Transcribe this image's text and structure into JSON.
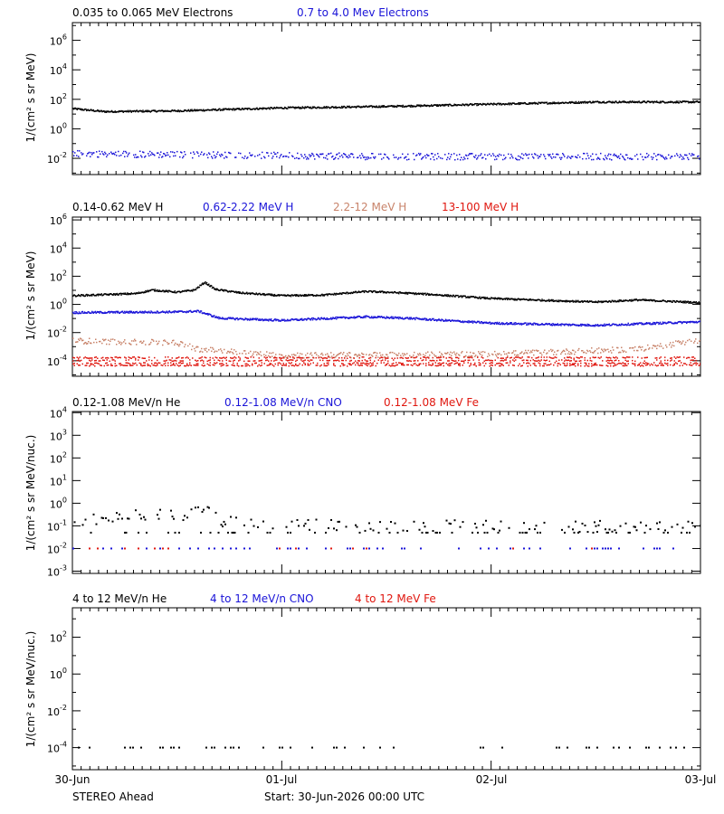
{
  "colors": {
    "black": "#000000",
    "blue": "#1a14d8",
    "salmon": "#c8836a",
    "red": "#e0170f",
    "white": "#ffffff"
  },
  "x_axis": {
    "ticks": [
      {
        "label": "30-Jun",
        "value": 0
      },
      {
        "label": "01-Jul",
        "value": 1
      },
      {
        "label": "02-Jul",
        "value": 2
      },
      {
        "label": "03-Jul",
        "value": 3
      }
    ],
    "minor_per_day": 24,
    "range_days": [
      0,
      3
    ]
  },
  "footer": {
    "spacecraft": "STEREO Ahead",
    "start": "Start: 30-Jun-2026 00:00 UTC"
  },
  "chart_data": [
    {
      "id": "electrons",
      "type": "scatter",
      "ylabel": "1/(cm² s sr MeV)",
      "yscale": "log",
      "ylim_exp": [
        -3.1,
        7.2
      ],
      "yticks_exp": [
        -2,
        0,
        2,
        4,
        6
      ],
      "legend": [
        {
          "text": "0.035 to 0.065 MeV Electrons",
          "color": "black"
        },
        {
          "text": "0.7 to 4.0 Mev Electrons",
          "color": "blue"
        }
      ],
      "series": [
        {
          "name": "0.035 to 0.065 MeV Electrons",
          "color": "black",
          "style": "dense",
          "curve": [
            [
              0,
              1.35
            ],
            [
              0.15,
              1.15
            ],
            [
              0.5,
              1.2
            ],
            [
              1.0,
              1.4
            ],
            [
              1.5,
              1.5
            ],
            [
              2.0,
              1.65
            ],
            [
              2.5,
              1.8
            ],
            [
              3.0,
              1.8
            ]
          ],
          "scatter": 0.06
        },
        {
          "name": "0.7 to 4.0 Mev Electrons",
          "color": "blue",
          "style": "noisy",
          "curve": [
            [
              0,
              -1.7
            ],
            [
              1.5,
              -1.9
            ],
            [
              3.0,
              -1.9
            ]
          ],
          "scatter": 0.22
        }
      ]
    },
    {
      "id": "protons",
      "type": "scatter",
      "ylabel": "1/(cm² s sr MeV)",
      "yscale": "log",
      "ylim_exp": [
        -5.1,
        6.2
      ],
      "yticks_exp": [
        -4,
        -2,
        0,
        2,
        4,
        6
      ],
      "legend": [
        {
          "text": "0.14-0.62 MeV H",
          "color": "black"
        },
        {
          "text": "0.62-2.22 MeV H",
          "color": "blue"
        },
        {
          "text": "2.2-12 MeV H",
          "color": "salmon"
        },
        {
          "text": "13-100 MeV H",
          "color": "red"
        }
      ],
      "series": [
        {
          "name": "0.14-0.62 MeV H",
          "color": "black",
          "style": "dense",
          "curve": [
            [
              0,
              0.6
            ],
            [
              0.3,
              0.75
            ],
            [
              0.38,
              1.0
            ],
            [
              0.5,
              0.85
            ],
            [
              0.58,
              1.0
            ],
            [
              0.63,
              1.55
            ],
            [
              0.68,
              1.05
            ],
            [
              0.8,
              0.8
            ],
            [
              1.0,
              0.6
            ],
            [
              1.2,
              0.65
            ],
            [
              1.4,
              0.9
            ],
            [
              1.5,
              0.85
            ],
            [
              1.7,
              0.7
            ],
            [
              2.0,
              0.4
            ],
            [
              2.5,
              0.15
            ],
            [
              2.7,
              0.3
            ],
            [
              3.0,
              0.1
            ]
          ],
          "scatter": 0.06
        },
        {
          "name": "0.62-2.22 MeV H",
          "color": "blue",
          "style": "dense",
          "curve": [
            [
              0,
              -0.6
            ],
            [
              0.5,
              -0.55
            ],
            [
              0.6,
              -0.5
            ],
            [
              0.7,
              -1.0
            ],
            [
              1.0,
              -1.15
            ],
            [
              1.4,
              -0.9
            ],
            [
              1.6,
              -1.0
            ],
            [
              2.0,
              -1.35
            ],
            [
              2.5,
              -1.5
            ],
            [
              2.8,
              -1.35
            ],
            [
              3.0,
              -1.25
            ]
          ],
          "scatter": 0.07
        },
        {
          "name": "2.2-12 MeV H",
          "color": "salmon",
          "style": "noisy",
          "curve": [
            [
              0,
              -2.6
            ],
            [
              0.5,
              -2.75
            ],
            [
              0.6,
              -3.2
            ],
            [
              1.0,
              -3.65
            ],
            [
              2.0,
              -3.55
            ],
            [
              2.4,
              -3.35
            ],
            [
              2.7,
              -3.2
            ],
            [
              3.0,
              -2.55
            ]
          ],
          "scatter": 0.2
        },
        {
          "name": "13-100 MeV H",
          "color": "red",
          "style": "bands",
          "bands": [
            -3.8,
            -4.0,
            -4.2,
            -4.35
          ],
          "scatter": 0.05
        }
      ]
    },
    {
      "id": "ions_low",
      "type": "scatter",
      "ylabel": "1/(cm² s sr MeV/nuc.)",
      "yscale": "log",
      "ylim_exp": [
        -3.1,
        4.05
      ],
      "yticks_exp": [
        -3,
        -2,
        -1,
        0,
        1,
        2,
        3,
        4
      ],
      "legend": [
        {
          "text": "0.12-1.08 MeV/n He",
          "color": "black"
        },
        {
          "text": "0.12-1.08 MeV/n CNO",
          "color": "blue"
        },
        {
          "text": "0.12-1.08 MeV Fe",
          "color": "red"
        }
      ],
      "series": [
        {
          "name": "0.12-1.08 MeV/n He",
          "color": "black",
          "style": "sparse",
          "curve": [
            [
              0,
              -0.75
            ],
            [
              0.3,
              -0.55
            ],
            [
              0.55,
              -0.5
            ],
            [
              0.62,
              -0.25
            ],
            [
              0.7,
              -0.8
            ],
            [
              1.0,
              -0.95
            ],
            [
              2.0,
              -1.0
            ],
            [
              3.0,
              -1.05
            ]
          ],
          "scatter": 0.25
        },
        {
          "name": "0.12-1.08 MeV/n CNO",
          "color": "blue",
          "style": "floor",
          "level": -2.0,
          "density": 0.25
        },
        {
          "name": "0.12-1.08 MeV Fe",
          "color": "red",
          "style": "floor",
          "level": -2.0,
          "density": 0.05
        }
      ]
    },
    {
      "id": "ions_high",
      "type": "scatter",
      "ylabel": "1/(cm² s sr MeV/nuc.)",
      "yscale": "log",
      "ylim_exp": [
        -5.2,
        3.6
      ],
      "yticks_exp": [
        -4,
        -2,
        0,
        2
      ],
      "legend": [
        {
          "text": "4 to 12 MeV/n He",
          "color": "black"
        },
        {
          "text": "4 to 12 MeV/n CNO",
          "color": "blue"
        },
        {
          "text": "4 to 12 MeV Fe",
          "color": "red"
        }
      ],
      "series": [
        {
          "name": "4 to 12 MeV/n He",
          "color": "black",
          "style": "floor",
          "level": -4.0,
          "density": 0.2
        }
      ]
    }
  ]
}
